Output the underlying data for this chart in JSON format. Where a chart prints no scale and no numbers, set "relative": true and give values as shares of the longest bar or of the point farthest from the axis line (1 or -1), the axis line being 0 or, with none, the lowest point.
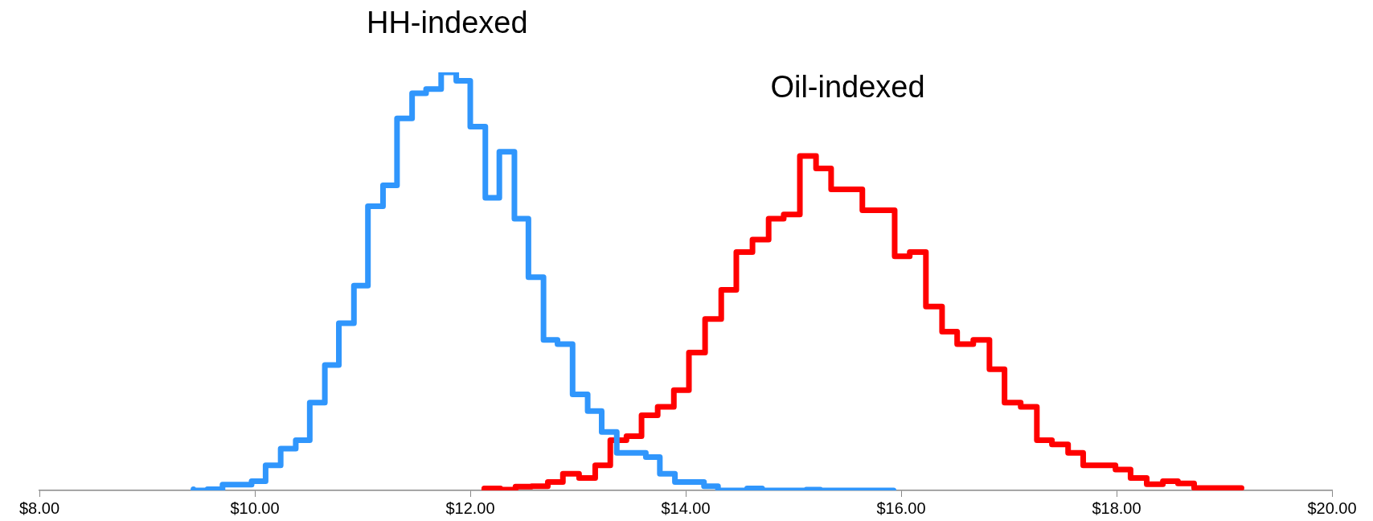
{
  "chart_data": {
    "type": "step",
    "relative": true,
    "xlim": [
      8,
      20
    ],
    "xticks": [
      {
        "value": 8,
        "label": "$8.00"
      },
      {
        "value": 10,
        "label": "$10.00"
      },
      {
        "value": 12,
        "label": "$12.00"
      },
      {
        "value": 14,
        "label": "$14.00"
      },
      {
        "value": 16,
        "label": "$16.00"
      },
      {
        "value": 18,
        "label": "$18.00"
      },
      {
        "value": 20,
        "label": "$20.00"
      }
    ],
    "series": [
      {
        "name": "HH-indexed",
        "color": "#3096fc",
        "x": [
          9.43,
          9.56,
          9.7,
          9.83,
          9.97,
          10.1,
          10.24,
          10.38,
          10.51,
          10.65,
          10.78,
          10.92,
          11.05,
          11.19,
          11.32,
          11.46,
          11.59,
          11.73,
          11.87,
          12.0,
          12.14,
          12.27,
          12.41,
          12.54,
          12.68,
          12.81,
          12.95,
          13.09,
          13.22,
          13.36,
          13.49,
          13.63,
          13.76,
          13.9,
          14.03,
          14.17,
          14.3,
          14.44,
          14.57,
          14.71,
          14.85,
          14.98,
          15.12,
          15.25,
          15.39,
          15.52,
          15.66,
          15.79,
          15.93
        ],
        "values": [
          0.003,
          0,
          0.003,
          0.014,
          0.014,
          0.022,
          0.06,
          0.1,
          0.12,
          0.21,
          0.3,
          0.4,
          0.49,
          0.68,
          0.73,
          0.89,
          0.95,
          0.96,
          1,
          0.98,
          0.87,
          0.7,
          0.81,
          0.65,
          0.51,
          0.36,
          0.35,
          0.23,
          0.19,
          0.14,
          0.09,
          0.09,
          0.08,
          0.04,
          0.02,
          0.02,
          0.01,
          0,
          0,
          0.005,
          0,
          0,
          0,
          0.002,
          0,
          0,
          0,
          0,
          0
        ]
      },
      {
        "name": "Oil-indexed",
        "color": "#ff0000",
        "x": [
          12.13,
          12.28,
          12.42,
          12.57,
          12.72,
          12.86,
          13.01,
          13.16,
          13.3,
          13.45,
          13.59,
          13.74,
          13.89,
          14.03,
          14.18,
          14.33,
          14.47,
          14.62,
          14.77,
          14.91,
          15.06,
          15.21,
          15.35,
          15.5,
          15.64,
          15.79,
          15.94,
          16.08,
          16.23,
          16.38,
          16.52,
          16.67,
          16.82,
          16.96,
          17.11,
          17.26,
          17.4,
          17.55,
          17.69,
          17.84,
          17.99,
          18.13,
          18.28,
          18.43,
          18.57,
          18.72,
          18.87,
          19.01,
          19.16
        ],
        "values": [
          0,
          0.005,
          0.002,
          0.009,
          0.01,
          0.02,
          0.04,
          0.03,
          0.06,
          0.12,
          0.13,
          0.18,
          0.2,
          0.24,
          0.33,
          0.41,
          0.48,
          0.57,
          0.6,
          0.65,
          0.66,
          0.8,
          0.77,
          0.72,
          0.72,
          0.67,
          0.67,
          0.56,
          0.57,
          0.44,
          0.38,
          0.35,
          0.36,
          0.29,
          0.21,
          0.2,
          0.12,
          0.11,
          0.09,
          0.06,
          0.06,
          0.05,
          0.03,
          0.015,
          0.022,
          0.017,
          0.006,
          0.006,
          0.006
        ]
      }
    ]
  }
}
